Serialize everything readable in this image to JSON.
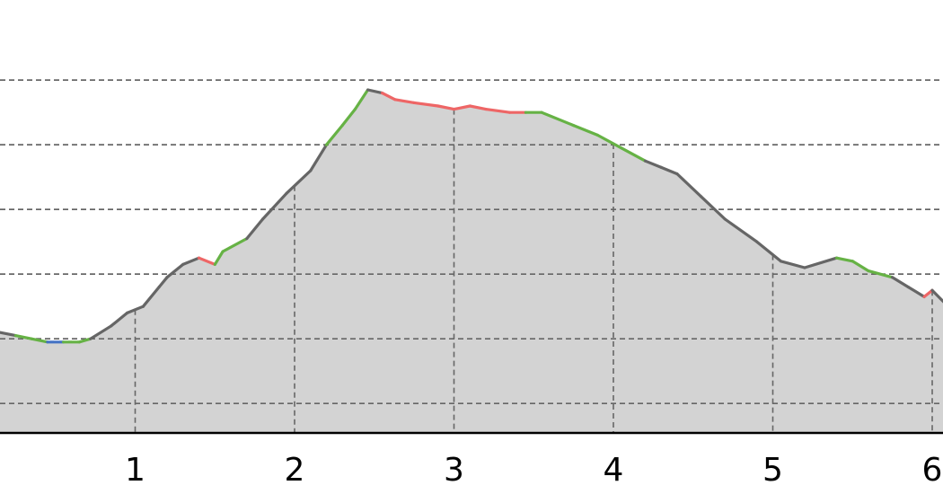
{
  "chart_data": {
    "type": "area",
    "title": "",
    "xlabel": "",
    "ylabel": "",
    "xlim": [
      0.0,
      6.08
    ],
    "ylim": [
      0,
      100
    ],
    "grid": true,
    "x_ticks": [
      1,
      2,
      3,
      4,
      5,
      6
    ],
    "x_tick_labels": [
      "1",
      "2",
      "3",
      "4",
      "5",
      "6"
    ],
    "y_gridlines": [
      8,
      28,
      48,
      68,
      88,
      108
    ],
    "fill_color": "#d3d3d3",
    "gradient_colors": {
      "flat_down": "#4472c4",
      "steep": "#666666",
      "moderate": "#66b245",
      "flat": "#ee6666"
    },
    "series": [
      {
        "values": [
          {
            "x": 0.0,
            "y": 29,
            "grade": "moderate"
          },
          {
            "x": 0.05,
            "y": 31,
            "grade": "steep"
          },
          {
            "x": 0.25,
            "y": 29,
            "grade": "steep"
          },
          {
            "x": 0.35,
            "y": 28,
            "grade": "moderate"
          },
          {
            "x": 0.45,
            "y": 27,
            "grade": "moderate"
          },
          {
            "x": 0.55,
            "y": 27,
            "grade": "flat_down"
          },
          {
            "x": 0.65,
            "y": 27,
            "grade": "moderate"
          },
          {
            "x": 0.72,
            "y": 28,
            "grade": "moderate"
          },
          {
            "x": 0.85,
            "y": 32,
            "grade": "steep"
          },
          {
            "x": 0.95,
            "y": 36,
            "grade": "steep"
          },
          {
            "x": 1.05,
            "y": 38,
            "grade": "steep"
          },
          {
            "x": 1.15,
            "y": 44,
            "grade": "steep"
          },
          {
            "x": 1.2,
            "y": 47,
            "grade": "steep"
          },
          {
            "x": 1.3,
            "y": 51,
            "grade": "steep"
          },
          {
            "x": 1.4,
            "y": 53,
            "grade": "steep"
          },
          {
            "x": 1.5,
            "y": 51,
            "grade": "flat"
          },
          {
            "x": 1.55,
            "y": 55,
            "grade": "moderate"
          },
          {
            "x": 1.7,
            "y": 59,
            "grade": "moderate"
          },
          {
            "x": 1.8,
            "y": 65,
            "grade": "steep"
          },
          {
            "x": 1.95,
            "y": 73,
            "grade": "steep"
          },
          {
            "x": 2.1,
            "y": 80,
            "grade": "steep"
          },
          {
            "x": 2.2,
            "y": 88,
            "grade": "steep"
          },
          {
            "x": 2.3,
            "y": 94,
            "grade": "moderate"
          },
          {
            "x": 2.38,
            "y": 99,
            "grade": "moderate"
          },
          {
            "x": 2.46,
            "y": 105,
            "grade": "moderate"
          },
          {
            "x": 2.55,
            "y": 104,
            "grade": "steep"
          },
          {
            "x": 2.63,
            "y": 102,
            "grade": "flat"
          },
          {
            "x": 2.75,
            "y": 101,
            "grade": "flat"
          },
          {
            "x": 2.9,
            "y": 100,
            "grade": "flat"
          },
          {
            "x": 3.0,
            "y": 99,
            "grade": "flat"
          },
          {
            "x": 3.1,
            "y": 100,
            "grade": "flat"
          },
          {
            "x": 3.2,
            "y": 99,
            "grade": "flat"
          },
          {
            "x": 3.35,
            "y": 98,
            "grade": "flat"
          },
          {
            "x": 3.45,
            "y": 98,
            "grade": "flat"
          },
          {
            "x": 3.55,
            "y": 98,
            "grade": "moderate"
          },
          {
            "x": 3.75,
            "y": 94,
            "grade": "moderate"
          },
          {
            "x": 3.9,
            "y": 91,
            "grade": "moderate"
          },
          {
            "x": 4.05,
            "y": 87,
            "grade": "moderate"
          },
          {
            "x": 4.2,
            "y": 83,
            "grade": "moderate"
          },
          {
            "x": 4.3,
            "y": 81,
            "grade": "steep"
          },
          {
            "x": 4.4,
            "y": 79,
            "grade": "steep"
          },
          {
            "x": 4.55,
            "y": 72,
            "grade": "steep"
          },
          {
            "x": 4.7,
            "y": 65,
            "grade": "steep"
          },
          {
            "x": 4.9,
            "y": 58,
            "grade": "steep"
          },
          {
            "x": 5.05,
            "y": 52,
            "grade": "steep"
          },
          {
            "x": 5.2,
            "y": 50,
            "grade": "steep"
          },
          {
            "x": 5.4,
            "y": 53,
            "grade": "steep"
          },
          {
            "x": 5.5,
            "y": 52,
            "grade": "moderate"
          },
          {
            "x": 5.6,
            "y": 49,
            "grade": "moderate"
          },
          {
            "x": 5.75,
            "y": 47,
            "grade": "moderate"
          },
          {
            "x": 5.85,
            "y": 44,
            "grade": "steep"
          },
          {
            "x": 5.95,
            "y": 41,
            "grade": "steep"
          },
          {
            "x": 6.0,
            "y": 43,
            "grade": "flat"
          },
          {
            "x": 6.08,
            "y": 39,
            "grade": "steep"
          }
        ]
      }
    ]
  }
}
